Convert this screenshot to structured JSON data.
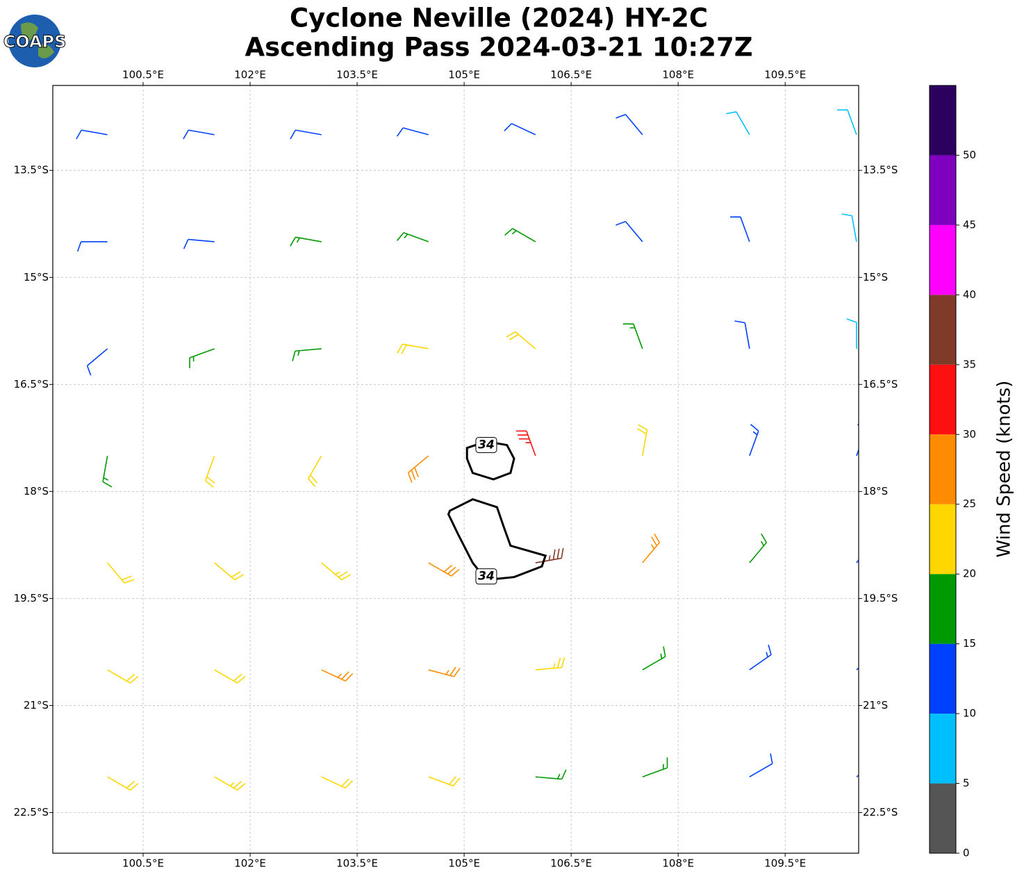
{
  "chart_data": {
    "type": "barbs",
    "title": "Cyclone Neville (2024) HY-2C",
    "subtitle": "Ascending Pass 2024-03-21 10:27Z",
    "logo": "COAPS",
    "xlim": [
      99.234,
      110.53
    ],
    "ylim": [
      -23.07,
      -12.31
    ],
    "xticks": [
      {
        "value": 100.5,
        "label": "100.5°E"
      },
      {
        "value": 102,
        "label": "102°E"
      },
      {
        "value": 103.5,
        "label": "103.5°E"
      },
      {
        "value": 105,
        "label": "105°E"
      },
      {
        "value": 106.5,
        "label": "106.5°E"
      },
      {
        "value": 108,
        "label": "108°E"
      },
      {
        "value": 109.5,
        "label": "109.5°E"
      }
    ],
    "yticks": [
      {
        "value": -13.5,
        "label": "13.5°S"
      },
      {
        "value": -15,
        "label": "15°S"
      },
      {
        "value": -16.5,
        "label": "16.5°S"
      },
      {
        "value": -18,
        "label": "18°S"
      },
      {
        "value": -19.5,
        "label": "19.5°S"
      },
      {
        "value": -21,
        "label": "21°S"
      },
      {
        "value": -22.5,
        "label": "22.5°S"
      }
    ],
    "grid": true,
    "barbs": {
      "lon": [
        100,
        101.5,
        103,
        104.5,
        106,
        107.5,
        109,
        110.5
      ],
      "lat": [
        -13,
        -14.5,
        -16,
        -17.5,
        -19,
        -20.5,
        -22
      ],
      "speed": [
        [
          12,
          12,
          12,
          12,
          12,
          12,
          8,
          8
        ],
        [
          12,
          12,
          17,
          17,
          17,
          12,
          12,
          8
        ],
        [
          12,
          17,
          17,
          22,
          22,
          17,
          12,
          8
        ],
        [
          17,
          22,
          22,
          28,
          33,
          22,
          14,
          12
        ],
        [
          22,
          22,
          24,
          28,
          36,
          25,
          16,
          12
        ],
        [
          22,
          22,
          26,
          26,
          24,
          17,
          13,
          12
        ],
        [
          22,
          24,
          22,
          22,
          17,
          17,
          12,
          12
        ]
      ],
      "direction": [
        [
          280,
          280,
          280,
          285,
          295,
          320,
          330,
          340
        ],
        [
          270,
          275,
          280,
          290,
          300,
          320,
          340,
          350
        ],
        [
          230,
          250,
          265,
          280,
          310,
          340,
          350,
          0
        ],
        [
          190,
          200,
          210,
          230,
          340,
          10,
          20,
          20
        ],
        [
          140,
          130,
          130,
          120,
          80,
          40,
          40,
          40
        ],
        [
          120,
          120,
          115,
          105,
          85,
          60,
          55,
          50
        ],
        [
          120,
          120,
          115,
          110,
          95,
          70,
          60,
          55
        ]
      ]
    },
    "contour": {
      "level": 34,
      "color": "#000000",
      "paths": [
        [
          [
            105.04,
            -17.39
          ],
          [
            105.31,
            -17.3
          ],
          [
            105.6,
            -17.35
          ],
          [
            105.7,
            -17.54
          ],
          [
            105.65,
            -17.74
          ],
          [
            105.41,
            -17.83
          ],
          [
            105.12,
            -17.74
          ],
          [
            105.04,
            -17.54
          ]
        ],
        [
          [
            104.8,
            -18.27
          ],
          [
            105.12,
            -18.11
          ],
          [
            105.46,
            -18.22
          ],
          [
            105.56,
            -18.51
          ],
          [
            105.65,
            -18.76
          ],
          [
            106.14,
            -18.9
          ],
          [
            106.09,
            -19.05
          ],
          [
            105.7,
            -19.2
          ],
          [
            105.31,
            -19.24
          ],
          [
            105.12,
            -19.0
          ],
          [
            104.92,
            -18.61
          ],
          [
            104.78,
            -18.32
          ]
        ]
      ]
    },
    "colorbar": {
      "label": "Wind Speed (knots)",
      "lim": [
        0,
        55
      ],
      "ticks": [
        0,
        5,
        10,
        15,
        20,
        25,
        30,
        35,
        40,
        45,
        50
      ],
      "colors": [
        "#555555",
        "#00bfff",
        "#0040ff",
        "#009900",
        "#ffd700",
        "#ff8c00",
        "#ff1010",
        "#7f3a28",
        "#ff00ff",
        "#8000c0",
        "#2b005e"
      ]
    }
  }
}
